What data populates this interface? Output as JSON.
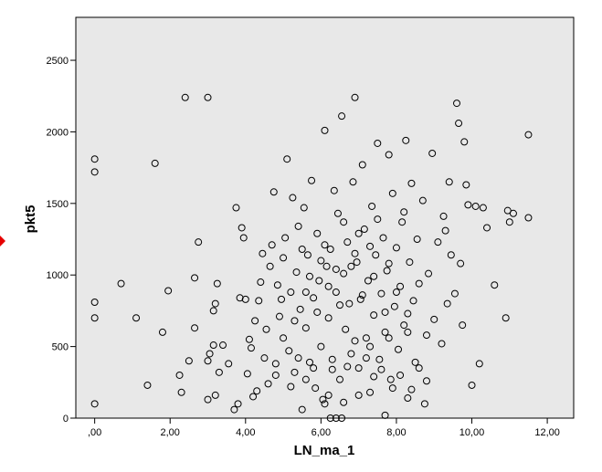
{
  "chart_data": {
    "type": "scatter",
    "xlabel": "LN_ma_1",
    "ylabel": "pkt5",
    "xlim": [
      -0.5,
      12.7
    ],
    "ylim": [
      0,
      2800
    ],
    "x_ticks": [
      0,
      2,
      4,
      6,
      8,
      10,
      12
    ],
    "x_tick_labels": [
      ",00",
      "2,00",
      "4,00",
      "6,00",
      "8,00",
      "10,00",
      "12,00"
    ],
    "y_ticks": [
      0,
      500,
      1000,
      1500,
      2000,
      2500
    ],
    "y_tick_labels": [
      "0",
      "500",
      "1000",
      "1500",
      "2000",
      "2500"
    ],
    "grid": false,
    "plot_background": "#e8e8e8",
    "marker_color": "#000000",
    "marker_style": "open-circle",
    "points": [
      [
        0,
        100
      ],
      [
        0,
        700
      ],
      [
        0,
        810
      ],
      [
        0,
        1720
      ],
      [
        0,
        1810
      ],
      [
        0.7,
        940
      ],
      [
        1.1,
        700
      ],
      [
        1.4,
        230
      ],
      [
        1.6,
        1780
      ],
      [
        1.8,
        600
      ],
      [
        1.95,
        890
      ],
      [
        2.25,
        300
      ],
      [
        2.3,
        180
      ],
      [
        2.4,
        2240
      ],
      [
        2.5,
        400
      ],
      [
        2.65,
        630
      ],
      [
        2.65,
        980
      ],
      [
        2.75,
        1230
      ],
      [
        3.0,
        2240
      ],
      [
        3.0,
        130
      ],
      [
        3.0,
        400
      ],
      [
        3.05,
        450
      ],
      [
        3.15,
        510
      ],
      [
        3.15,
        750
      ],
      [
        3.2,
        800
      ],
      [
        3.2,
        160
      ],
      [
        3.25,
        940
      ],
      [
        3.3,
        320
      ],
      [
        3.4,
        510
      ],
      [
        3.55,
        380
      ],
      [
        3.7,
        60
      ],
      [
        3.75,
        1470
      ],
      [
        3.8,
        100
      ],
      [
        3.85,
        840
      ],
      [
        3.9,
        1330
      ],
      [
        3.95,
        1260
      ],
      [
        4.0,
        830
      ],
      [
        4.05,
        310
      ],
      [
        4.1,
        550
      ],
      [
        4.15,
        490
      ],
      [
        4.2,
        150
      ],
      [
        4.25,
        680
      ],
      [
        4.3,
        190
      ],
      [
        4.35,
        820
      ],
      [
        4.4,
        950
      ],
      [
        4.45,
        1150
      ],
      [
        4.5,
        420
      ],
      [
        4.55,
        620
      ],
      [
        4.6,
        240
      ],
      [
        4.65,
        1060
      ],
      [
        4.7,
        1210
      ],
      [
        4.75,
        1580
      ],
      [
        4.8,
        380
      ],
      [
        4.85,
        930
      ],
      [
        4.9,
        710
      ],
      [
        5.0,
        560
      ],
      [
        5.05,
        1260
      ],
      [
        5.1,
        1810
      ],
      [
        5.15,
        470
      ],
      [
        5.2,
        880
      ],
      [
        5.25,
        1540
      ],
      [
        5.3,
        320
      ],
      [
        5.35,
        1020
      ],
      [
        5.4,
        1340
      ],
      [
        5.45,
        760
      ],
      [
        5.5,
        60
      ],
      [
        5.55,
        1470
      ],
      [
        5.6,
        630
      ],
      [
        5.65,
        1140
      ],
      [
        5.7,
        390
      ],
      [
        5.75,
        1660
      ],
      [
        5.8,
        840
      ],
      [
        5.85,
        210
      ],
      [
        5.9,
        1290
      ],
      [
        5.95,
        960
      ],
      [
        6.0,
        500
      ],
      [
        6.05,
        130
      ],
      [
        6.1,
        2010
      ],
      [
        6.15,
        1060
      ],
      [
        6.2,
        700
      ],
      [
        6.25,
        1180
      ],
      [
        6.3,
        340
      ],
      [
        6.35,
        1590
      ],
      [
        6.4,
        880
      ],
      [
        6.45,
        1430
      ],
      [
        6.5,
        270
      ],
      [
        6.55,
        2110
      ],
      [
        6.6,
        1010
      ],
      [
        6.65,
        620
      ],
      [
        6.7,
        1230
      ],
      [
        6.75,
        800
      ],
      [
        6.8,
        450
      ],
      [
        6.85,
        1650
      ],
      [
        6.9,
        2240
      ],
      [
        6.95,
        1090
      ],
      [
        7.0,
        350
      ],
      [
        7.05,
        830
      ],
      [
        7.1,
        1770
      ],
      [
        7.15,
        1320
      ],
      [
        7.2,
        560
      ],
      [
        7.25,
        960
      ],
      [
        7.3,
        180
      ],
      [
        7.35,
        1480
      ],
      [
        7.4,
        720
      ],
      [
        7.45,
        1140
      ],
      [
        7.5,
        1920
      ],
      [
        7.55,
        410
      ],
      [
        7.6,
        870
      ],
      [
        7.65,
        1260
      ],
      [
        7.7,
        600
      ],
      [
        7.75,
        1030
      ],
      [
        7.8,
        1840
      ],
      [
        7.85,
        270
      ],
      [
        7.9,
        1570
      ],
      [
        7.95,
        780
      ],
      [
        8.0,
        1190
      ],
      [
        8.05,
        480
      ],
      [
        8.1,
        920
      ],
      [
        8.15,
        1370
      ],
      [
        8.2,
        650
      ],
      [
        8.25,
        1940
      ],
      [
        8.3,
        140
      ],
      [
        8.35,
        1090
      ],
      [
        8.4,
        1640
      ],
      [
        8.45,
        820
      ],
      [
        8.5,
        390
      ],
      [
        8.55,
        1250
      ],
      [
        8.6,
        940
      ],
      [
        8.7,
        1520
      ],
      [
        8.75,
        100
      ],
      [
        8.8,
        580
      ],
      [
        8.85,
        1010
      ],
      [
        8.95,
        1850
      ],
      [
        9.0,
        690
      ],
      [
        9.1,
        1230
      ],
      [
        9.2,
        520
      ],
      [
        9.25,
        1410
      ],
      [
        9.3,
        1310
      ],
      [
        9.35,
        800
      ],
      [
        9.4,
        1650
      ],
      [
        9.45,
        1140
      ],
      [
        9.55,
        870
      ],
      [
        9.6,
        2200
      ],
      [
        9.65,
        2060
      ],
      [
        9.7,
        1080
      ],
      [
        9.75,
        650
      ],
      [
        9.8,
        1930
      ],
      [
        9.85,
        1630
      ],
      [
        9.9,
        1490
      ],
      [
        10.0,
        230
      ],
      [
        10.1,
        1480
      ],
      [
        10.2,
        380
      ],
      [
        10.3,
        1470
      ],
      [
        10.4,
        1330
      ],
      [
        10.6,
        930
      ],
      [
        10.9,
        700
      ],
      [
        10.95,
        1450
      ],
      [
        11.0,
        1370
      ],
      [
        11.1,
        1430
      ],
      [
        11.5,
        1980
      ],
      [
        11.5,
        1400
      ],
      [
        4.95,
        830
      ],
      [
        5.3,
        680
      ],
      [
        5.6,
        880
      ],
      [
        5.9,
        740
      ],
      [
        6.2,
        920
      ],
      [
        6.5,
        790
      ],
      [
        6.8,
        1060
      ],
      [
        7.1,
        860
      ],
      [
        7.4,
        990
      ],
      [
        7.7,
        740
      ],
      [
        8.0,
        880
      ],
      [
        8.3,
        730
      ],
      [
        5.4,
        420
      ],
      [
        5.8,
        350
      ],
      [
        6.3,
        410
      ],
      [
        6.7,
        360
      ],
      [
        7.2,
        420
      ],
      [
        7.6,
        340
      ],
      [
        8.1,
        300
      ],
      [
        8.6,
        350
      ],
      [
        6.0,
        1100
      ],
      [
        6.4,
        1040
      ],
      [
        6.9,
        1150
      ],
      [
        7.3,
        1200
      ],
      [
        7.8,
        1080
      ],
      [
        5.7,
        990
      ],
      [
        6.1,
        1210
      ],
      [
        6.6,
        1370
      ],
      [
        7.0,
        1290
      ],
      [
        7.5,
        1390
      ],
      [
        8.2,
        1440
      ],
      [
        4.8,
        300
      ],
      [
        5.2,
        220
      ],
      [
        5.6,
        270
      ],
      [
        6.2,
        160
      ],
      [
        6.6,
        110
      ],
      [
        7.0,
        160
      ],
      [
        7.4,
        290
      ],
      [
        7.9,
        210
      ],
      [
        8.4,
        200
      ],
      [
        8.8,
        260
      ],
      [
        5.0,
        1120
      ],
      [
        5.5,
        1180
      ],
      [
        6.9,
        540
      ],
      [
        7.3,
        500
      ],
      [
        7.8,
        560
      ],
      [
        8.3,
        600
      ],
      [
        6.25,
        0
      ],
      [
        6.4,
        0
      ],
      [
        6.55,
        0
      ],
      [
        6.1,
        100
      ],
      [
        7.7,
        20
      ]
    ]
  }
}
